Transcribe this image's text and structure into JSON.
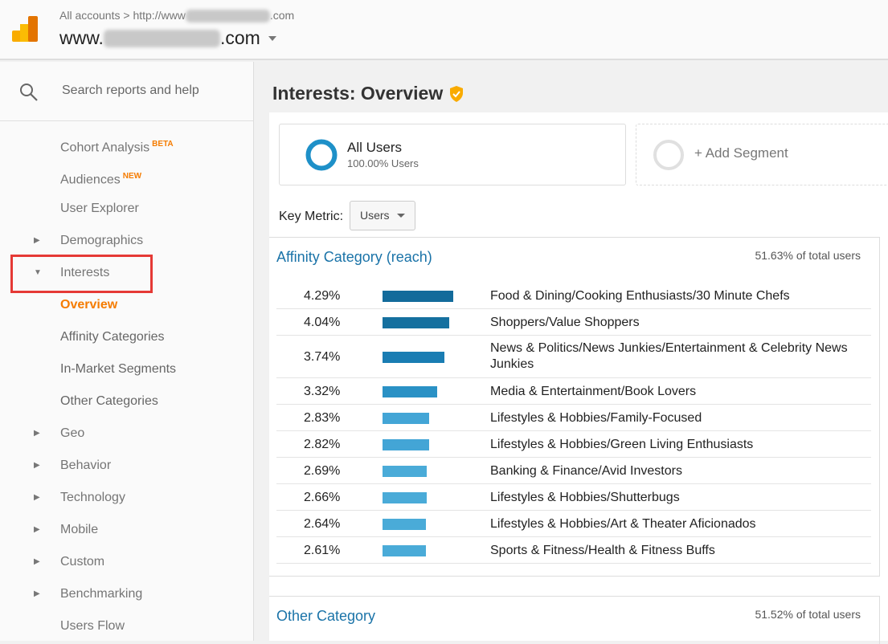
{
  "header": {
    "breadcrumb_prefix": "All accounts",
    "breadcrumb_sep": ">",
    "breadcrumb_url_start": "http://www",
    "breadcrumb_url_end": ".com",
    "property_start": "www.",
    "property_end": ".com"
  },
  "sidebar": {
    "search_placeholder": "Search reports and help",
    "items": [
      {
        "label": "Cohort Analysis",
        "badge": "BETA"
      },
      {
        "label": "Audiences",
        "badge": "NEW"
      },
      {
        "label": "User Explorer"
      },
      {
        "label": "Demographics",
        "caret": "▶"
      },
      {
        "label": "Interests",
        "caret": "▼"
      },
      {
        "label": "Overview"
      },
      {
        "label": "Affinity Categories"
      },
      {
        "label": "In-Market Segments"
      },
      {
        "label": "Other Categories"
      },
      {
        "label": "Geo",
        "caret": "▶"
      },
      {
        "label": "Behavior",
        "caret": "▶"
      },
      {
        "label": "Technology",
        "caret": "▶"
      },
      {
        "label": "Mobile",
        "caret": "▶"
      },
      {
        "label": "Custom",
        "caret": "▶"
      },
      {
        "label": "Benchmarking",
        "caret": "▶"
      },
      {
        "label": "Users Flow"
      }
    ]
  },
  "main": {
    "title": "Interests: Overview",
    "segment": {
      "name": "All Users",
      "sub": "100.00% Users"
    },
    "add_segment": "+ Add Segment",
    "key_metric_label": "Key Metric:",
    "key_metric_value": "Users",
    "affinity": {
      "title": "Affinity Category (reach)",
      "total": "51.63% of total users",
      "rows": [
        {
          "pct": "4.29%",
          "value": 4.29,
          "label": "Food & Dining/Cooking Enthusiasts/30 Minute Chefs"
        },
        {
          "pct": "4.04%",
          "value": 4.04,
          "label": "Shoppers/Value Shoppers"
        },
        {
          "pct": "3.74%",
          "value": 3.74,
          "label": "News & Politics/News Junkies/Entertainment & Celebrity News Junkies"
        },
        {
          "pct": "3.32%",
          "value": 3.32,
          "label": "Media & Entertainment/Book Lovers"
        },
        {
          "pct": "2.83%",
          "value": 2.83,
          "label": "Lifestyles & Hobbies/Family-Focused"
        },
        {
          "pct": "2.82%",
          "value": 2.82,
          "label": "Lifestyles & Hobbies/Green Living Enthusiasts"
        },
        {
          "pct": "2.69%",
          "value": 2.69,
          "label": "Banking & Finance/Avid Investors"
        },
        {
          "pct": "2.66%",
          "value": 2.66,
          "label": "Lifestyles & Hobbies/Shutterbugs"
        },
        {
          "pct": "2.64%",
          "value": 2.64,
          "label": "Lifestyles & Hobbies/Art & Theater Aficionados"
        },
        {
          "pct": "2.61%",
          "value": 2.61,
          "label": "Sports & Fitness/Health & Fitness Buffs"
        }
      ]
    },
    "other": {
      "title": "Other Category",
      "total": "51.52% of total users"
    }
  },
  "colors": {
    "accent": "#f57c00",
    "link": "#1a73a8",
    "bar_dark": "#136b9b",
    "bar_light": "#4aabd8",
    "highlight": "#e53935"
  }
}
